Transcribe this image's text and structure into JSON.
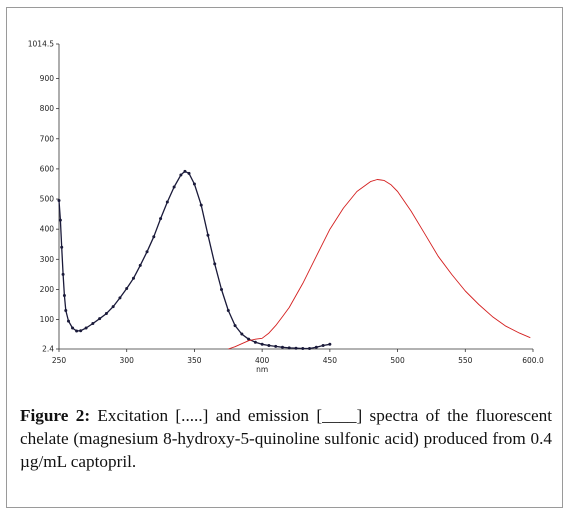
{
  "chart_data": {
    "type": "line",
    "xlabel": "nm",
    "ylabel": "",
    "xlim": [
      250,
      600
    ],
    "ylim": [
      2.4,
      1014.5
    ],
    "x_ticks": [
      {
        "value": 250,
        "label": "250"
      },
      {
        "value": 300,
        "label": "300"
      },
      {
        "value": 350,
        "label": "350"
      },
      {
        "value": 400,
        "label": "400"
      },
      {
        "value": 450,
        "label": "450"
      },
      {
        "value": 500,
        "label": "500"
      },
      {
        "value": 550,
        "label": "550"
      },
      {
        "value": 600,
        "label": "600.0"
      }
    ],
    "y_ticks": [
      {
        "value": 2.4,
        "label": "2.4"
      },
      {
        "value": 100,
        "label": "100"
      },
      {
        "value": 200,
        "label": "200"
      },
      {
        "value": 300,
        "label": "300"
      },
      {
        "value": 400,
        "label": "400"
      },
      {
        "value": 500,
        "label": "500"
      },
      {
        "value": 600,
        "label": "600"
      },
      {
        "value": 700,
        "label": "700"
      },
      {
        "value": 800,
        "label": "800"
      },
      {
        "value": 900,
        "label": "900"
      },
      {
        "value": 1014.5,
        "label": "1014.5"
      }
    ],
    "grid": false,
    "series": [
      {
        "style": "dotted-dark-line",
        "color": "#1a1a3a",
        "points": [
          [
            250,
            495
          ],
          [
            251,
            430
          ],
          [
            252,
            340
          ],
          [
            253,
            250
          ],
          [
            254,
            180
          ],
          [
            255,
            130
          ],
          [
            257,
            95
          ],
          [
            260,
            72
          ],
          [
            263,
            62
          ],
          [
            266,
            63
          ],
          [
            270,
            72
          ],
          [
            275,
            87
          ],
          [
            280,
            103
          ],
          [
            285,
            120
          ],
          [
            290,
            143
          ],
          [
            295,
            172
          ],
          [
            300,
            203
          ],
          [
            305,
            237
          ],
          [
            310,
            280
          ],
          [
            315,
            325
          ],
          [
            320,
            375
          ],
          [
            325,
            435
          ],
          [
            330,
            490
          ],
          [
            335,
            540
          ],
          [
            340,
            580
          ],
          [
            343,
            592
          ],
          [
            346,
            585
          ],
          [
            350,
            550
          ],
          [
            355,
            480
          ],
          [
            360,
            380
          ],
          [
            365,
            285
          ],
          [
            370,
            200
          ],
          [
            375,
            130
          ],
          [
            380,
            80
          ],
          [
            385,
            52
          ],
          [
            390,
            35
          ],
          [
            395,
            25
          ],
          [
            400,
            18
          ],
          [
            405,
            14
          ],
          [
            410,
            11
          ],
          [
            415,
            8
          ],
          [
            420,
            6
          ],
          [
            425,
            5
          ],
          [
            430,
            4
          ],
          [
            435,
            4
          ],
          [
            440,
            8
          ],
          [
            445,
            14
          ],
          [
            450,
            18
          ]
        ]
      },
      {
        "style": "solid-red-line",
        "color": "#d41f1f",
        "points": [
          [
            375,
            2.4
          ],
          [
            380,
            10
          ],
          [
            385,
            20
          ],
          [
            390,
            30
          ],
          [
            395,
            35
          ],
          [
            400,
            38
          ],
          [
            405,
            55
          ],
          [
            410,
            80
          ],
          [
            415,
            110
          ],
          [
            420,
            140
          ],
          [
            430,
            220
          ],
          [
            440,
            310
          ],
          [
            450,
            400
          ],
          [
            460,
            470
          ],
          [
            470,
            525
          ],
          [
            480,
            558
          ],
          [
            485,
            565
          ],
          [
            490,
            562
          ],
          [
            495,
            548
          ],
          [
            500,
            525
          ],
          [
            510,
            460
          ],
          [
            520,
            385
          ],
          [
            530,
            310
          ],
          [
            540,
            250
          ],
          [
            550,
            195
          ],
          [
            560,
            150
          ],
          [
            570,
            110
          ],
          [
            580,
            78
          ],
          [
            590,
            55
          ],
          [
            598,
            40
          ]
        ]
      }
    ]
  },
  "caption": {
    "label": "Figure 2:",
    "text": " Excitation [.....] and emission [____] spectra of the fluorescent chelate (magnesium 8-hydroxy-5-quinoline sulfonic acid) produced from 0.4 µg/mL captopril."
  }
}
